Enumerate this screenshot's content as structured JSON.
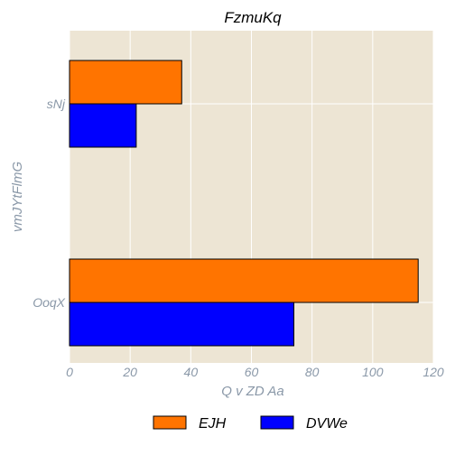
{
  "chart_data": {
    "type": "bar",
    "orientation": "horizontal",
    "title": "FzmuKq",
    "xlabel": "Q v ZD Aa",
    "ylabel": "vmJYtFlmG",
    "categories": [
      "sNj",
      "OoqX"
    ],
    "series": [
      {
        "name": "EJH",
        "color": "#ff7400",
        "values": [
          37,
          115
        ]
      },
      {
        "name": "DVWe",
        "color": "#0000ff",
        "values": [
          22,
          74
        ]
      }
    ],
    "xlim": [
      0,
      120
    ],
    "xticks": [
      "0",
      "20",
      "40",
      "60",
      "80",
      "100",
      "120"
    ],
    "grid": true,
    "legend_position": "bottom",
    "colors": {
      "background": "#ede5d4",
      "grid": "#ffffff",
      "bar_edge": "#000000"
    }
  }
}
